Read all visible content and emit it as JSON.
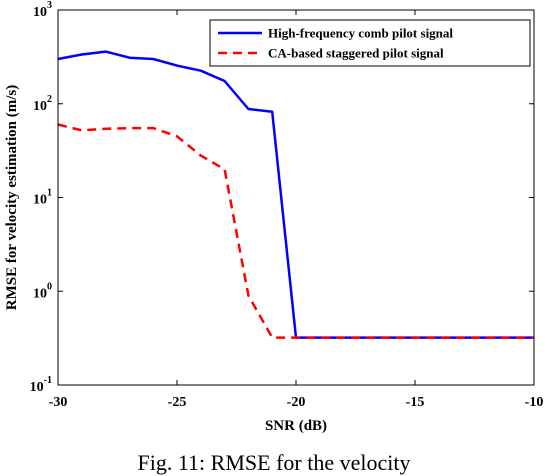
{
  "caption": "Fig. 11: RMSE for the velocity",
  "chart_data": {
    "type": "line",
    "title": "",
    "xlabel": "SNR (dB)",
    "ylabel": "RMSE for velocity estimation (m/s)",
    "xlim": [
      -30,
      -10
    ],
    "ylim": [
      0.1,
      1000
    ],
    "yscale": "log",
    "xticks": [
      -30,
      -25,
      -20,
      -15,
      -10
    ],
    "xtick_labels": [
      "-30",
      "-25",
      "-20",
      "-15",
      "-10"
    ],
    "yticks": [
      {
        "value": 0.1,
        "base": "10",
        "exp": "-1"
      },
      {
        "value": 1,
        "base": "10",
        "exp": "0"
      },
      {
        "value": 10,
        "base": "10",
        "exp": "1"
      },
      {
        "value": 100,
        "base": "10",
        "exp": "2"
      },
      {
        "value": 1000,
        "base": "10",
        "exp": "3"
      }
    ],
    "grid": false,
    "legend_position": "top-right",
    "x": [
      -30,
      -29,
      -28,
      -27,
      -26,
      -25,
      -24,
      -23,
      -22,
      -21,
      -20,
      -19,
      -18,
      -17,
      -16,
      -15,
      -14,
      -13,
      -12,
      -11,
      -10
    ],
    "series": [
      {
        "name": "High-frequency comb pilot signal",
        "color": "#0000ff",
        "style": "solid",
        "values": [
          300,
          335,
          360,
          310,
          300,
          255,
          225,
          175,
          88,
          82,
          0.32,
          0.32,
          0.32,
          0.32,
          0.32,
          0.32,
          0.32,
          0.32,
          0.32,
          0.32,
          0.32
        ]
      },
      {
        "name": "CA-based staggered pilot signal",
        "color": "#ff0000",
        "style": "dashed",
        "values": [
          60,
          52,
          54,
          55,
          55,
          45,
          28,
          20,
          0.9,
          0.32,
          0.32,
          0.32,
          0.32,
          0.32,
          0.32,
          0.32,
          0.32,
          0.32,
          0.32,
          0.32,
          0.32
        ]
      }
    ]
  }
}
